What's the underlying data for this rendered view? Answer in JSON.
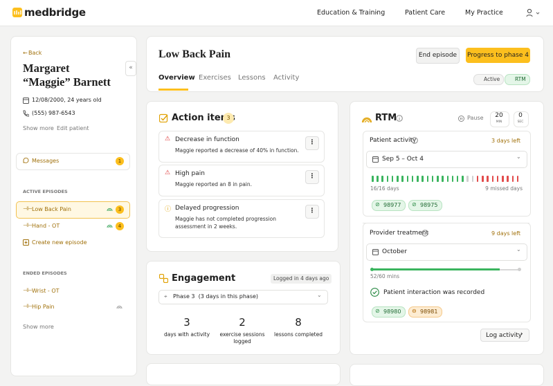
{
  "nav": {
    "brand": "medbridge",
    "links": [
      "Education & Training",
      "Patient Care",
      "My Practice"
    ]
  },
  "sidebar": {
    "back": "Back",
    "name": "Margaret “Maggie” Barnett",
    "dob": "12/08/2000, 24 years old",
    "phone": "(555) 987-6543",
    "show_more": "Show more",
    "edit": "Edit patient",
    "messages": "Messages",
    "messages_count": 1,
    "active_title": "ACTIVE EPISODES",
    "active": [
      {
        "label": "Low Back Pain",
        "count": 3
      },
      {
        "label": "Hand - OT",
        "count": 4
      }
    ],
    "create": "Create new episode",
    "ended_title": "ENDED EPISODES",
    "ended": [
      "Wrist - OT",
      "Hip Pain"
    ],
    "ended_more": "Show more"
  },
  "episode": {
    "title": "Low Back Pain",
    "end": "End episode",
    "progress": "Progress to phase 4",
    "tabs": [
      "Overview",
      "Exercises",
      "Lessons",
      "Activity"
    ],
    "status": [
      "Active",
      "RTM"
    ]
  },
  "action_items": {
    "title": "Action items",
    "count": 3,
    "items": [
      {
        "title": "Decrease in function",
        "desc": "Maggie reported a decrease of 40% in function."
      },
      {
        "title": "High pain",
        "desc": "Maggie reported an 8 in pain."
      },
      {
        "title": "Delayed progression",
        "desc": "Maggie has not completed progression assessment in 2 weeks."
      }
    ]
  },
  "engagement": {
    "title": "Engagement",
    "badge": "Logged in 4 days ago",
    "phase": "Phase 3  (3 days in this phase)",
    "stats": [
      {
        "value": 3,
        "label": "days with activity"
      },
      {
        "value": 2,
        "label": "exercise sessions logged"
      },
      {
        "value": 8,
        "label": "lessons completed"
      }
    ]
  },
  "rtm": {
    "title": "RTM",
    "pause": "Pause",
    "timer": [
      {
        "value": 20,
        "unit": "MIN"
      },
      {
        "value": 0,
        "unit": "SEC"
      }
    ],
    "patient_activity": {
      "title": "Patient activity",
      "days_left": "3 days left",
      "range": "Sep 5 – Oct 4",
      "days": "16/16 days",
      "missed": "9 missed days",
      "activity_days": [
        "met",
        "met",
        "met",
        "met",
        "met",
        "met",
        "met",
        "met",
        "met",
        "met",
        "met",
        "met",
        "met",
        "met",
        "met",
        "met",
        "met",
        "met",
        "met",
        "none",
        "none",
        "missed",
        "missed",
        "missed",
        "missed",
        "missed",
        "missed",
        "missed",
        "missed",
        "missed"
      ],
      "codes": [
        "98977",
        "98975"
      ]
    },
    "provider_treatment": {
      "title": "Provider treatment",
      "days_left": "9 days left",
      "month": "October",
      "minutes": 52,
      "goal": 60,
      "minutes_label": "52/60 mins",
      "interaction": "Patient interaction was recorded",
      "codes": [
        "98980",
        "98981"
      ],
      "log": "Log activity"
    }
  }
}
